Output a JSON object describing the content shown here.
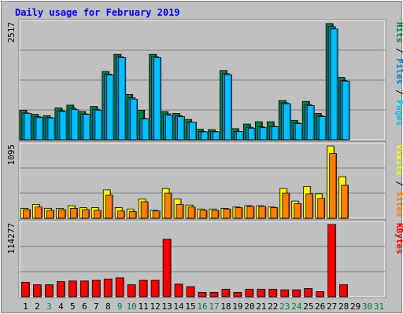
{
  "title": "Daily usage for February 2019",
  "colors": {
    "background": "#c0c0c0",
    "panel": "#c0c0c0",
    "title": "#0000ff",
    "hits": "#008040",
    "files": "#0080c0",
    "pages": "#00c0ff",
    "visits": "#ffff00",
    "sites": "#ff8000",
    "kbytes": "#ff0000",
    "weekend": "#008040",
    "weekday": "#000000"
  },
  "chart_data": [
    {
      "type": "bar",
      "y_max_label": "2517",
      "ylim": [
        0,
        2517
      ],
      "right_label": [
        {
          "text": "Hits",
          "color_key": "hits"
        },
        {
          "text": " / ",
          "color_key": "weekday"
        },
        {
          "text": "Files",
          "color_key": "files"
        },
        {
          "text": " / ",
          "color_key": "weekday"
        },
        {
          "text": "Pages",
          "color_key": "pages"
        }
      ],
      "categories": [
        "1",
        "2",
        "3",
        "4",
        "5",
        "6",
        "7",
        "8",
        "9",
        "10",
        "11",
        "12",
        "13",
        "14",
        "15",
        "16",
        "17",
        "18",
        "19",
        "20",
        "21",
        "22",
        "23",
        "24",
        "25",
        "26",
        "27",
        "28",
        "29",
        "30",
        "31"
      ],
      "series": [
        {
          "name": "Hits",
          "color_key": "hits",
          "values": [
            640,
            550,
            520,
            690,
            750,
            610,
            720,
            1480,
            1850,
            980,
            640,
            1850,
            610,
            570,
            440,
            230,
            220,
            1500,
            240,
            340,
            390,
            390,
            850,
            420,
            830,
            570,
            2517,
            1350,
            0,
            0,
            0
          ]
        },
        {
          "name": "Files",
          "color_key": "files",
          "values": [
            580,
            500,
            480,
            630,
            680,
            560,
            660,
            1420,
            1800,
            910,
            460,
            1800,
            560,
            520,
            380,
            180,
            180,
            1430,
            180,
            270,
            280,
            290,
            800,
            360,
            760,
            520,
            2450,
            1280,
            0,
            0,
            0
          ]
        },
        {
          "name": "Pages",
          "color_key": "pages",
          "values": [
            570,
            480,
            470,
            610,
            650,
            550,
            640,
            1400,
            1780,
            880,
            450,
            1780,
            530,
            500,
            380,
            170,
            170,
            1410,
            180,
            250,
            260,
            280,
            780,
            350,
            740,
            500,
            2400,
            1270,
            0,
            0,
            0
          ]
        }
      ]
    },
    {
      "type": "bar",
      "y_max_label": "1095",
      "ylim": [
        0,
        1095
      ],
      "right_label": [
        {
          "text": "Visits",
          "color_key": "visits"
        },
        {
          "text": " / ",
          "color_key": "weekday"
        },
        {
          "text": "Sites",
          "color_key": "sites"
        }
      ],
      "categories": [
        "1",
        "2",
        "3",
        "4",
        "5",
        "6",
        "7",
        "8",
        "9",
        "10",
        "11",
        "12",
        "13",
        "14",
        "15",
        "16",
        "17",
        "18",
        "19",
        "20",
        "21",
        "22",
        "23",
        "24",
        "25",
        "26",
        "27",
        "28",
        "29",
        "30",
        "31"
      ],
      "series": [
        {
          "name": "Visits",
          "color_key": "visits",
          "values": [
            150,
            210,
            150,
            150,
            190,
            160,
            160,
            430,
            160,
            140,
            290,
            120,
            450,
            290,
            200,
            140,
            140,
            150,
            170,
            190,
            190,
            170,
            450,
            260,
            480,
            370,
            1095,
            630,
            0,
            0,
            0
          ]
        },
        {
          "name": "Sites",
          "color_key": "sites",
          "values": [
            130,
            170,
            120,
            130,
            150,
            130,
            120,
            350,
            110,
            100,
            250,
            110,
            380,
            210,
            170,
            120,
            120,
            140,
            160,
            180,
            180,
            160,
            380,
            220,
            370,
            300,
            980,
            500,
            0,
            0,
            0
          ]
        }
      ]
    },
    {
      "type": "bar",
      "y_max_label": "114277",
      "ylim": [
        0,
        114277
      ],
      "right_label": [
        {
          "text": "KBytes",
          "color_key": "kbytes"
        }
      ],
      "categories": [
        "1",
        "2",
        "3",
        "4",
        "5",
        "6",
        "7",
        "8",
        "9",
        "10",
        "11",
        "12",
        "13",
        "14",
        "15",
        "16",
        "17",
        "18",
        "19",
        "20",
        "21",
        "22",
        "23",
        "24",
        "25",
        "26",
        "27",
        "28",
        "29",
        "30",
        "31"
      ],
      "series": [
        {
          "name": "KBytes",
          "color_key": "kbytes",
          "values": [
            23000,
            19000,
            19000,
            24000,
            25000,
            25000,
            26000,
            28000,
            30000,
            19000,
            26000,
            26000,
            91000,
            20000,
            16000,
            7000,
            7000,
            12000,
            7000,
            12000,
            12000,
            12000,
            11000,
            11000,
            13000,
            8000,
            114277,
            19000,
            0,
            0,
            0
          ]
        }
      ]
    }
  ],
  "x_labels": [
    {
      "text": "1",
      "weekend": false
    },
    {
      "text": "2",
      "weekend": false
    },
    {
      "text": "3",
      "weekend": true
    },
    {
      "text": "4",
      "weekend": false
    },
    {
      "text": "5",
      "weekend": false
    },
    {
      "text": "6",
      "weekend": false
    },
    {
      "text": "7",
      "weekend": false
    },
    {
      "text": "8",
      "weekend": false
    },
    {
      "text": "9",
      "weekend": true
    },
    {
      "text": "10",
      "weekend": true
    },
    {
      "text": "11",
      "weekend": false
    },
    {
      "text": "12",
      "weekend": false
    },
    {
      "text": "13",
      "weekend": false
    },
    {
      "text": "14",
      "weekend": false
    },
    {
      "text": "15",
      "weekend": false
    },
    {
      "text": "16",
      "weekend": true
    },
    {
      "text": "17",
      "weekend": true
    },
    {
      "text": "18",
      "weekend": false
    },
    {
      "text": "19",
      "weekend": false
    },
    {
      "text": "20",
      "weekend": false
    },
    {
      "text": "21",
      "weekend": false
    },
    {
      "text": "22",
      "weekend": false
    },
    {
      "text": "23",
      "weekend": true
    },
    {
      "text": "24",
      "weekend": true
    },
    {
      "text": "25",
      "weekend": false
    },
    {
      "text": "26",
      "weekend": false
    },
    {
      "text": "27",
      "weekend": false
    },
    {
      "text": "28",
      "weekend": false
    },
    {
      "text": "29",
      "weekend": false
    },
    {
      "text": "30",
      "weekend": true
    },
    {
      "text": "31",
      "weekend": true
    }
  ]
}
